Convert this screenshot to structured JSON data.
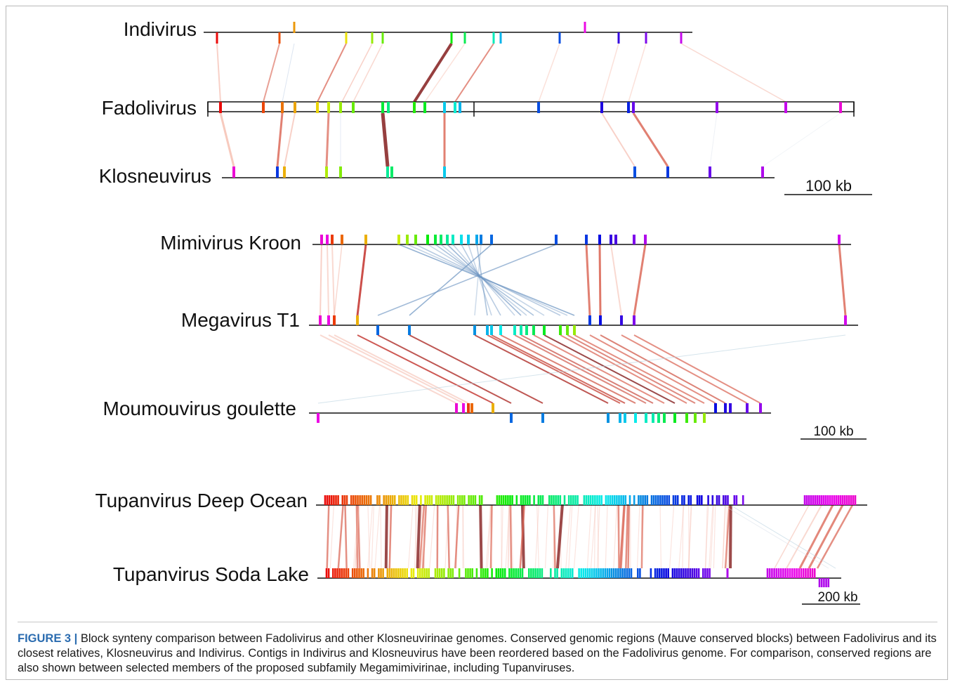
{
  "colors": {
    "backbone": "#111111",
    "accent_caption": "#2b6cb0",
    "link_strong": "#8b2a2a",
    "link_medium": "#d9604f",
    "link_light": "#f4b3a3",
    "link_inverted": "#6d95c2"
  },
  "panel_a": {
    "genomes": [
      "Indivirus",
      "Fadolivirus",
      "Klosneuvirus"
    ],
    "scale_label": "100 kb"
  },
  "panel_b": {
    "genomes": [
      "Mimivirus Kroon",
      "Megavirus T1",
      "Moumouvirus goulette"
    ],
    "scale_label": "100 kb"
  },
  "panel_c": {
    "genomes": [
      "Tupanvirus Deep Ocean",
      "Tupanvirus Soda Lake"
    ],
    "scale_label": "200 kb"
  },
  "caption": {
    "label": "FIGURE 3 |",
    "text": "Block synteny comparison between Fadolivirus and other Klosneuvirinae genomes. Conserved genomic regions (Mauve conserved blocks) between Fadolivirus and its closest relatives, Klosneuvirus and Indivirus. Contigs in Indivirus and Klosneuvirus have been reordered based on the Fadolivirus genome. For comparison, conserved regions are also shown between selected members of the proposed subfamily Megamimivirinae, including Tupanviruses."
  }
}
